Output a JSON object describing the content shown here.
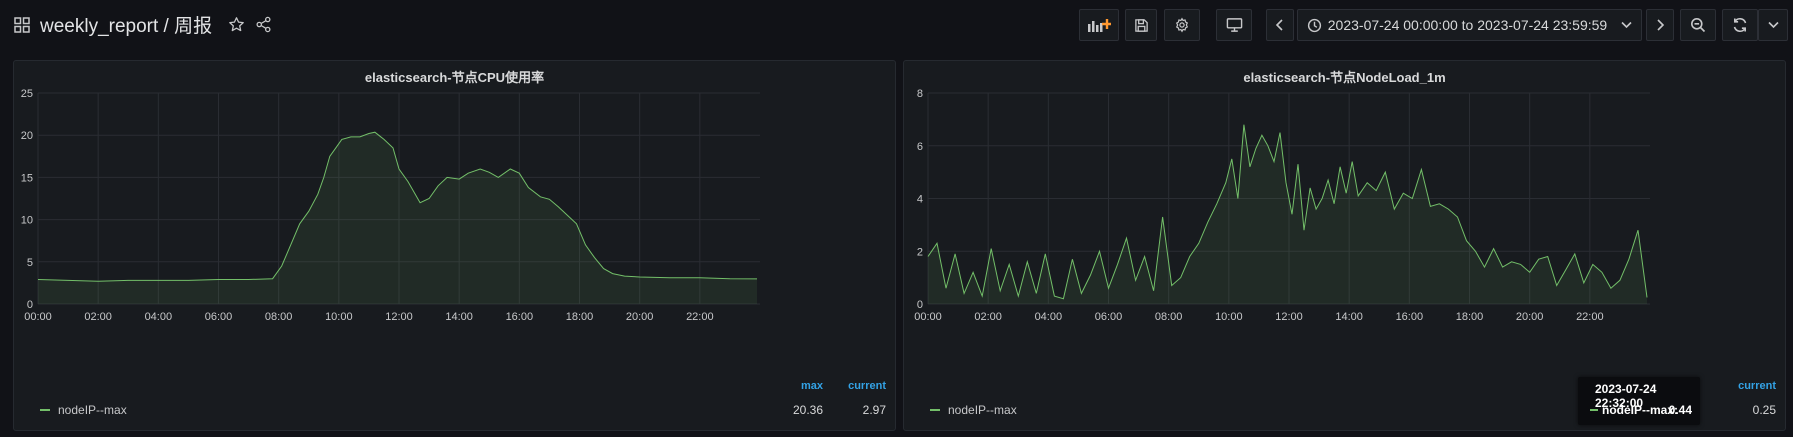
{
  "header": {
    "title": "weekly_report / 周报",
    "time_range": "2023-07-24 00:00:00 to 2023-07-24 23:59:59",
    "icons": [
      "apps-icon",
      "star-icon",
      "share-icon",
      "add-panel-icon",
      "save-icon",
      "settings-icon",
      "tv-mode-icon",
      "chevron-left-icon",
      "clock-icon",
      "chevron-down-icon",
      "chevron-right-icon",
      "zoom-out-icon",
      "refresh-icon",
      "chevron-down-icon"
    ]
  },
  "panels": [
    {
      "title": "elasticsearch-节点CPU使用率",
      "legend": {
        "series_name": "nodeIP--max",
        "max_label": "max",
        "current_label": "current",
        "max_value": "20.36",
        "current_value": "2.97"
      }
    },
    {
      "title": "elasticsearch-节点NodeLoad_1m",
      "legend": {
        "series_name": "nodeIP--max",
        "max_label": "max",
        "current_label": "current",
        "current_value": "0.25"
      },
      "tooltip": {
        "time": "2023-07-24 22:32:00",
        "series": "nodeIP--max:",
        "value": "0.44"
      }
    }
  ],
  "chart_data": [
    {
      "type": "area",
      "title": "elasticsearch-节点CPU使用率",
      "x_ticks": [
        "00:00",
        "02:00",
        "04:00",
        "06:00",
        "08:00",
        "10:00",
        "12:00",
        "14:00",
        "16:00",
        "18:00",
        "20:00",
        "22:00"
      ],
      "y_ticks": [
        "0",
        "5",
        "10",
        "15",
        "20",
        "25"
      ],
      "xlim": [
        0,
        24
      ],
      "ylim": [
        0,
        25
      ],
      "color": "#73bf69",
      "grid": true,
      "series": [
        {
          "name": "nodeIP--max",
          "x": [
            0,
            1,
            2,
            3,
            4,
            5,
            6,
            7,
            7.8,
            8.1,
            8.4,
            8.7,
            9.0,
            9.3,
            9.5,
            9.7,
            9.9,
            10.1,
            10.4,
            10.7,
            11.0,
            11.2,
            11.5,
            11.8,
            12.0,
            12.3,
            12.7,
            13.0,
            13.3,
            13.6,
            14.0,
            14.3,
            14.7,
            15.0,
            15.3,
            15.7,
            16.0,
            16.3,
            16.7,
            17.0,
            17.3,
            17.6,
            17.9,
            18.2,
            18.5,
            18.8,
            19.1,
            19.5,
            20,
            21,
            22,
            23,
            23.9
          ],
          "y": [
            2.9,
            2.8,
            2.7,
            2.8,
            2.8,
            2.8,
            2.9,
            2.9,
            3.0,
            4.5,
            7,
            9.5,
            11,
            13,
            15,
            17.5,
            18.5,
            19.5,
            19.8,
            19.8,
            20.2,
            20.36,
            19.5,
            18.5,
            16,
            14.5,
            12,
            12.5,
            14,
            15,
            14.8,
            15.5,
            16,
            15.6,
            15,
            16,
            15.5,
            13.8,
            12.7,
            12.4,
            11.5,
            10.5,
            9.5,
            7,
            5.5,
            4.2,
            3.6,
            3.3,
            3.2,
            3.1,
            3.1,
            3.0,
            2.97
          ]
        }
      ]
    },
    {
      "type": "line",
      "title": "elasticsearch-节点NodeLoad_1m",
      "x_ticks": [
        "00:00",
        "02:00",
        "04:00",
        "06:00",
        "08:00",
        "10:00",
        "12:00",
        "14:00",
        "16:00",
        "18:00",
        "20:00",
        "22:00"
      ],
      "y_ticks": [
        "0",
        "2",
        "4",
        "6",
        "8"
      ],
      "xlim": [
        0,
        24
      ],
      "ylim": [
        0,
        8
      ],
      "color": "#73bf69",
      "grid": true,
      "series": [
        {
          "name": "nodeIP--max",
          "x": [
            0,
            0.3,
            0.6,
            0.9,
            1.2,
            1.5,
            1.8,
            2.1,
            2.4,
            2.7,
            3.0,
            3.3,
            3.6,
            3.9,
            4.2,
            4.5,
            4.8,
            5.1,
            5.4,
            5.7,
            6.0,
            6.3,
            6.6,
            6.9,
            7.2,
            7.5,
            7.8,
            8.1,
            8.4,
            8.7,
            9.0,
            9.3,
            9.6,
            9.9,
            10.1,
            10.3,
            10.5,
            10.7,
            10.9,
            11.1,
            11.3,
            11.5,
            11.7,
            11.9,
            12.1,
            12.3,
            12.5,
            12.7,
            12.9,
            13.1,
            13.3,
            13.5,
            13.7,
            13.9,
            14.1,
            14.3,
            14.6,
            14.9,
            15.2,
            15.5,
            15.8,
            16.1,
            16.4,
            16.7,
            17.0,
            17.3,
            17.6,
            17.9,
            18.2,
            18.5,
            18.8,
            19.1,
            19.4,
            19.7,
            20.0,
            20.3,
            20.6,
            20.9,
            21.2,
            21.5,
            21.8,
            22.1,
            22.4,
            22.7,
            23.0,
            23.3,
            23.6,
            23.9
          ],
          "y": [
            1.8,
            2.3,
            0.6,
            1.9,
            0.4,
            1.2,
            0.3,
            2.1,
            0.5,
            1.5,
            0.3,
            1.6,
            0.4,
            1.9,
            0.3,
            0.2,
            1.7,
            0.4,
            1.1,
            2.0,
            0.6,
            1.5,
            2.5,
            0.9,
            1.8,
            0.5,
            3.3,
            0.7,
            1.0,
            1.8,
            2.3,
            3.1,
            3.8,
            4.6,
            5.5,
            4.0,
            6.8,
            5.2,
            5.9,
            6.4,
            6.0,
            5.4,
            6.5,
            4.6,
            3.4,
            5.3,
            2.8,
            4.4,
            3.6,
            4.0,
            4.7,
            3.8,
            5.2,
            4.2,
            5.4,
            4.1,
            4.6,
            4.3,
            5.0,
            3.6,
            4.2,
            4.0,
            5.1,
            3.7,
            3.8,
            3.6,
            3.3,
            2.4,
            2.0,
            1.4,
            2.1,
            1.4,
            1.6,
            1.5,
            1.2,
            1.7,
            1.8,
            0.7,
            1.3,
            1.9,
            0.8,
            1.5,
            1.2,
            0.6,
            0.9,
            1.7,
            2.8,
            0.25
          ]
        }
      ]
    }
  ]
}
